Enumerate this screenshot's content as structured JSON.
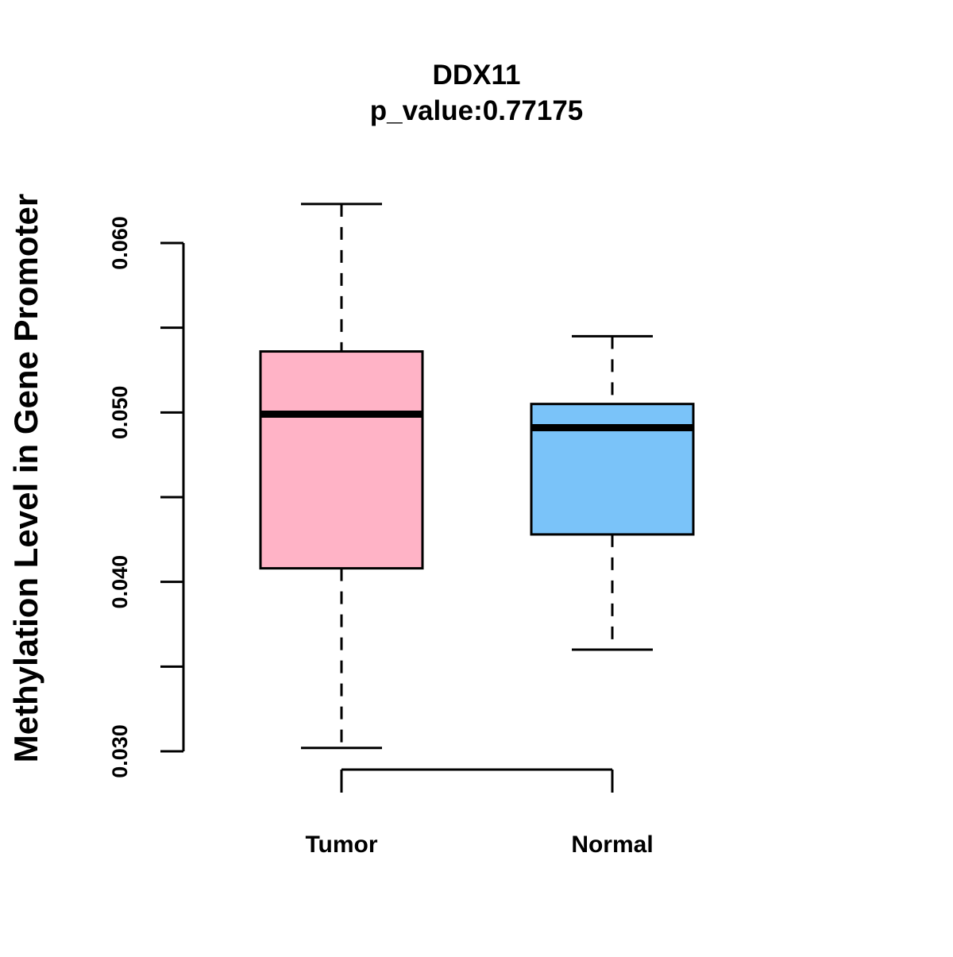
{
  "chart_data": {
    "type": "boxplot",
    "title": "DDX11",
    "subtitle": "p_value:0.77175",
    "xlabel": "",
    "ylabel": "Methylation Level in Gene Promoter",
    "ylim": [
      0.03,
      0.06
    ],
    "y_ticks": [
      0.03,
      0.035,
      0.04,
      0.045,
      0.05,
      0.055,
      0.06
    ],
    "y_tick_labels": [
      "0.030",
      "",
      "0.040",
      "",
      "0.050",
      "",
      "0.060"
    ],
    "categories": [
      "Tumor",
      "Normal"
    ],
    "series": [
      {
        "name": "Tumor",
        "color": "#FFB3C6",
        "whisker_low": 0.0302,
        "q1": 0.0408,
        "median": 0.0499,
        "q3": 0.0536,
        "whisker_high": 0.0623
      },
      {
        "name": "Normal",
        "color": "#7AC3F9",
        "whisker_low": 0.036,
        "q1": 0.0428,
        "median": 0.0491,
        "q3": 0.0505,
        "whisker_high": 0.0545
      }
    ],
    "grid": false,
    "legend": "none"
  }
}
